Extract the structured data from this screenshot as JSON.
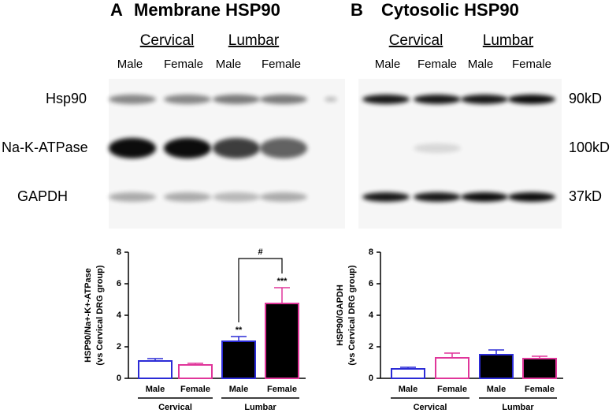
{
  "blots": [
    {
      "letter": "A",
      "title": "Membrane HSP90",
      "groups": [
        "Cervical",
        "Lumbar"
      ],
      "lanes": [
        "Male",
        "Female",
        "Male",
        "Female"
      ],
      "rows": [
        "Hsp90",
        "Na-K-ATPase",
        "GAPDH"
      ]
    },
    {
      "letter": "B",
      "title": "Cytosolic HSP90",
      "groups": [
        "Cervical",
        "Lumbar"
      ],
      "lanes": [
        "Male",
        "Female",
        "Male",
        "Female"
      ],
      "sizes": [
        "90kD",
        "100kD",
        "37kD"
      ]
    }
  ],
  "chart_data": [
    {
      "type": "bar",
      "y_label": [
        "HSP90/Na+-K+-ATPase",
        "(vs Cervical DRG group)"
      ],
      "categories": [
        "Male",
        "Female",
        "Male",
        "Female"
      ],
      "groups": [
        "Cervical",
        "Lumbar"
      ],
      "values": [
        1.1,
        0.85,
        2.35,
        4.75
      ],
      "errors": [
        0.15,
        0.1,
        0.3,
        1.0
      ],
      "edge_colors": [
        "#2b2bd6",
        "#e0369a",
        "#2b2bd6",
        "#e0369a"
      ],
      "fills": [
        "#ffffff",
        "#ffffff",
        "#000000",
        "#000000"
      ],
      "significance": [
        null,
        null,
        "**",
        "***"
      ],
      "comparison": "#",
      "ylim": [
        0,
        8
      ],
      "yticks": [
        0,
        2,
        4,
        6,
        8
      ]
    },
    {
      "type": "bar",
      "y_label": [
        "HSP90/GAPDH",
        "(vs Cervical DRG group)"
      ],
      "categories": [
        "Male",
        "Female",
        "Male",
        "Female"
      ],
      "groups": [
        "Cervical",
        "Lumbar"
      ],
      "values": [
        0.6,
        1.3,
        1.5,
        1.25
      ],
      "errors": [
        0.1,
        0.3,
        0.3,
        0.15
      ],
      "edge_colors": [
        "#2b2bd6",
        "#e0369a",
        "#2b2bd6",
        "#e0369a"
      ],
      "fills": [
        "#ffffff",
        "#ffffff",
        "#000000",
        "#000000"
      ],
      "ylim": [
        0,
        8
      ],
      "yticks": [
        0,
        2,
        4,
        6,
        8
      ]
    }
  ]
}
